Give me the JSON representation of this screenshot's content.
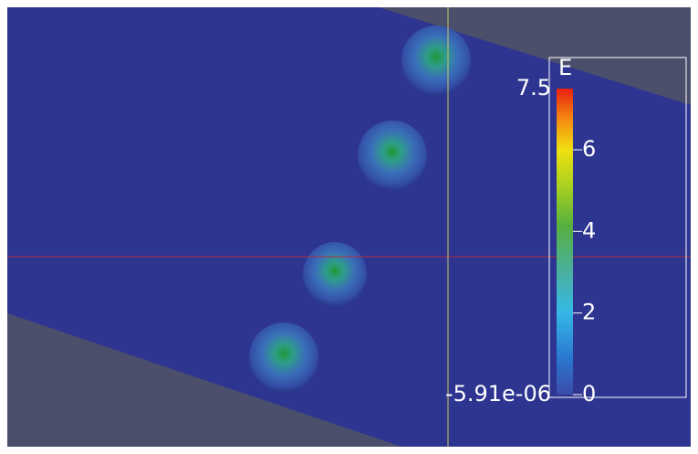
{
  "colorbar": {
    "title": "E",
    "range": [
      {
        "value": -5.91e-06,
        "label": "-5.91e-06"
      },
      7.5
    ],
    "ticks": [
      6,
      4,
      2,
      0
    ]
  }
}
